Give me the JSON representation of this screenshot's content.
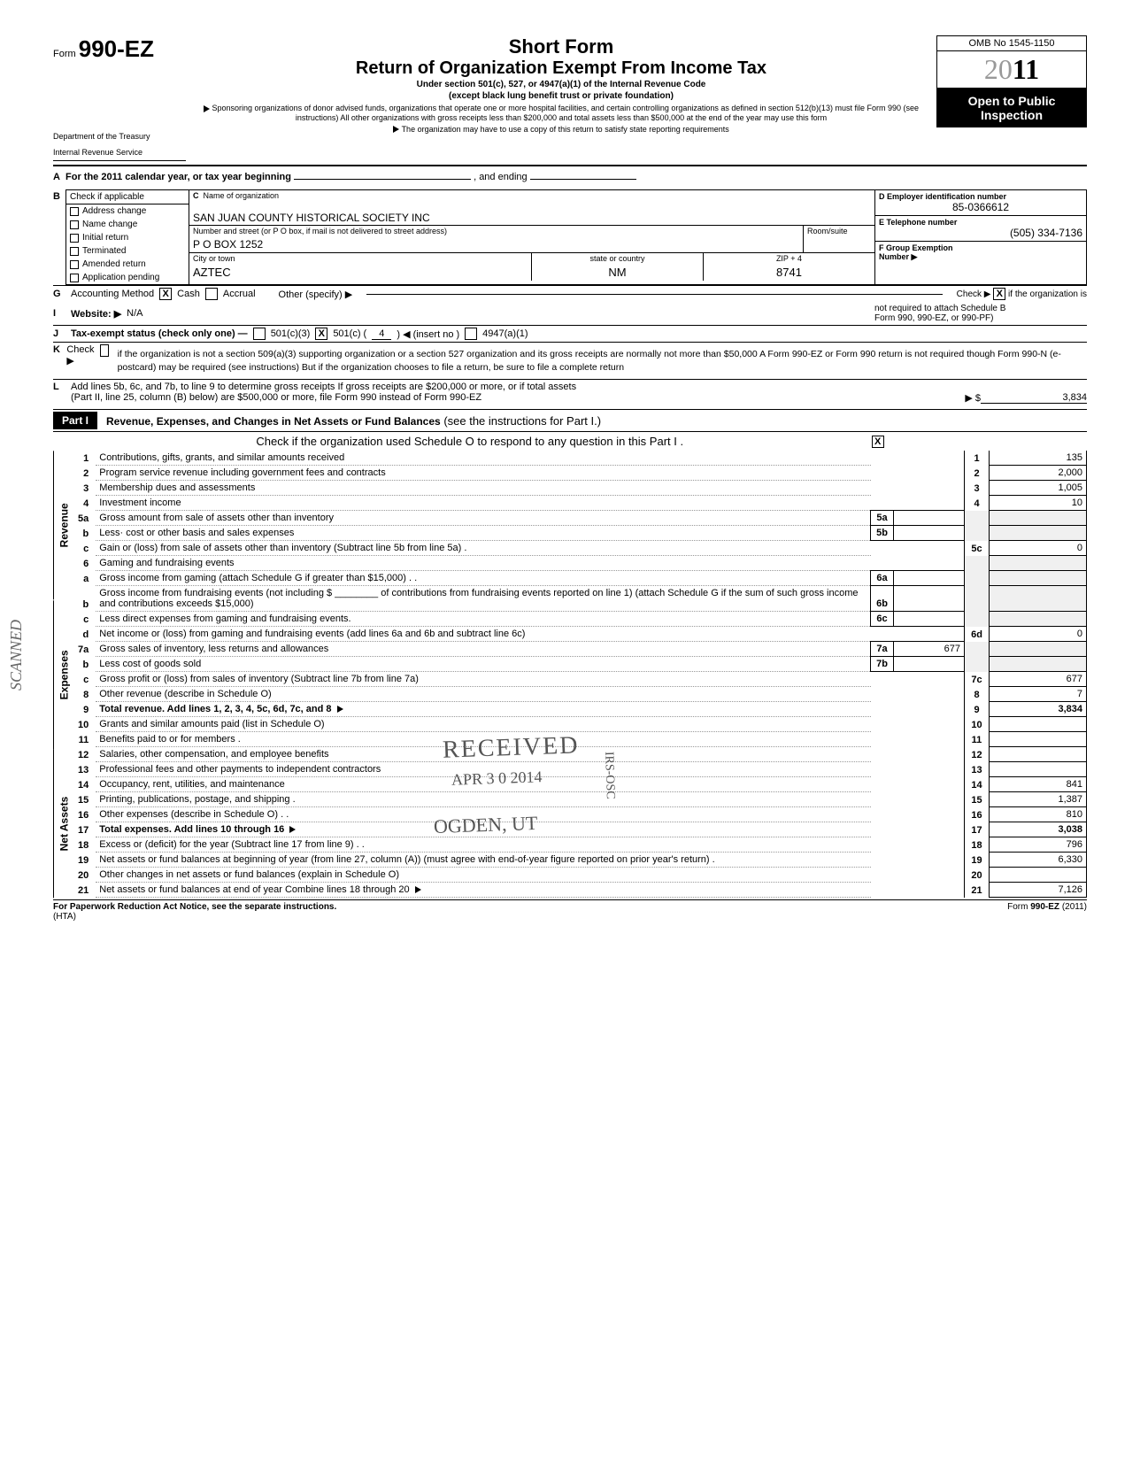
{
  "form": {
    "prefix": "Form",
    "number": "990-EZ",
    "dept1": "Department of the Treasury",
    "dept2": "Internal Revenue Service"
  },
  "title": {
    "main": "Short Form",
    "sub": "Return of Organization Exempt From Income Tax",
    "line1": "Under section 501(c), 527, or 4947(a)(1) of the Internal Revenue Code",
    "line2": "(except black lung benefit trust or private foundation)",
    "sponsor": "Sponsoring organizations of donor advised funds, organizations that operate one or more hospital facilities, and certain controlling organizations as defined in section 512(b)(13) must file Form 990 (see instructions) All other organizations with gross receipts less than $200,000 and total assets less than $500,000 at the end of the year may use this form",
    "copy": "The organization may have to use a copy of this return to satisfy state reporting requirements"
  },
  "rightcol": {
    "omb": "OMB No 1545-1150",
    "year_light": "20",
    "year_bold": "11",
    "open1": "Open to Public",
    "open2": "Inspection"
  },
  "lineA": {
    "text": "For the 2011 calendar year, or tax year beginning",
    "ending": ", and ending"
  },
  "sectionB": {
    "header": "Check if applicable",
    "items": [
      "Address change",
      "Name change",
      "Initial return",
      "Terminated",
      "Amended return",
      "Application pending"
    ]
  },
  "sectionC": {
    "header": "Name of organization",
    "org_name": "SAN JUAN COUNTY HISTORICAL SOCIETY INC",
    "addr_label": "Number and street (or P O box, if mail is not delivered to street address)",
    "room_label": "Room/suite",
    "addr": "P O BOX 1252",
    "city_label": "City or town",
    "state_label": "state or country",
    "zip_label": "ZIP + 4",
    "city": "AZTEC",
    "state": "NM",
    "zip": "8741"
  },
  "sectionD": {
    "d_label": "D  Employer identification number",
    "ein": "85-0366612",
    "e_label": "E  Telephone number",
    "phone": "(505) 334-7136",
    "f_label": "F  Group Exemption",
    "f_label2": "Number ▶"
  },
  "lineG": {
    "label": "Accounting Method",
    "cash": "Cash",
    "accrual": "Accrual",
    "other": "Other (specify) ▶"
  },
  "lineH": {
    "text1": "Check ▶",
    "text2": "if the organization is",
    "text3": "not required to attach Schedule B",
    "text4": "Form 990, 990-EZ, or 990-PF)"
  },
  "lineI": {
    "label": "Website: ▶",
    "value": "N/A"
  },
  "lineJ": {
    "label": "Tax-exempt status (check only one) —",
    "opt1": "501(c)(3)",
    "opt2": "501(c) (",
    "opt2_val": "4",
    "opt2_suffix": ") ◀ (insert no )",
    "opt3": "4947(a)(1)"
  },
  "lineK": {
    "label": "Check ▶",
    "text": "if the organization is not a section 509(a)(3) supporting organization or a section 527 organization and its gross receipts are normally not more than $50,000  A Form 990-EZ or Form 990 return is not required though Form 990-N (e-postcard) may be required (see instructions)  But if the organization chooses to file a return, be sure to file a complete return"
  },
  "lineL": {
    "text1": "Add lines 5b, 6c, and 7b, to line 9 to determine gross receipts  If gross receipts are $200,000 or more, or if total assets",
    "text2": "(Part II, line 25, column (B) below) are $500,000 or more, file Form 990 instead of Form 990-EZ",
    "arrow_label": "▶ $",
    "value": "3,834"
  },
  "part1": {
    "label": "Part I",
    "title": "Revenue, Expenses, and Changes in Net Assets or Fund Balances",
    "title_suffix": "(see the instructions for Part I.)",
    "schedule_o": "Check if the organization used Schedule O to respond to any question in this Part I .",
    "schedule_o_checked": "X"
  },
  "sides": {
    "revenue": "Revenue",
    "expenses": "Expenses",
    "netassets": "Net Assets"
  },
  "rows": [
    {
      "n": "1",
      "desc": "Contributions, gifts, grants, and similar amounts received",
      "box": "1",
      "amt": "135"
    },
    {
      "n": "2",
      "desc": "Program service revenue including government fees and contracts",
      "box": "2",
      "amt": "2,000"
    },
    {
      "n": "3",
      "desc": "Membership dues and assessments",
      "box": "3",
      "amt": "1,005"
    },
    {
      "n": "4",
      "desc": "Investment income",
      "box": "4",
      "amt": "10"
    },
    {
      "n": "5a",
      "desc": "Gross amount from sale of assets other than inventory",
      "sub": "5a",
      "subamt": ""
    },
    {
      "n": "b",
      "desc": "Less· cost or other basis and sales expenses",
      "sub": "5b",
      "subamt": ""
    },
    {
      "n": "c",
      "desc": "Gain or (loss) from sale of assets other than inventory (Subtract line 5b from line 5a) .",
      "box": "5c",
      "amt": "0"
    },
    {
      "n": "6",
      "desc": "Gaming and fundraising events"
    },
    {
      "n": "a",
      "desc": "Gross income from gaming (attach Schedule G if greater than $15,000) . .",
      "sub": "6a",
      "subamt": ""
    },
    {
      "n": "b",
      "desc": "Gross income from fundraising events (not including $ ________ of contributions from fundraising events reported on line 1) (attach Schedule G if the sum of such gross income and contributions exceeds $15,000)",
      "sub": "6b",
      "subamt": ""
    },
    {
      "n": "c",
      "desc": "Less direct expenses from gaming and fundraising events.",
      "sub": "6c",
      "subamt": ""
    },
    {
      "n": "d",
      "desc": "Net income or (loss) from gaming and fundraising events (add lines 6a and 6b and subtract line 6c)",
      "box": "6d",
      "amt": "0"
    },
    {
      "n": "7a",
      "desc": "Gross sales of inventory, less returns and allowances",
      "sub": "7a",
      "subamt": "677"
    },
    {
      "n": "b",
      "desc": "Less cost of goods sold",
      "sub": "7b",
      "subamt": ""
    },
    {
      "n": "c",
      "desc": "Gross profit or (loss) from sales of inventory (Subtract line 7b from line 7a)",
      "box": "7c",
      "amt": "677"
    },
    {
      "n": "8",
      "desc": "Other revenue (describe in Schedule O)",
      "box": "8",
      "amt": "7"
    },
    {
      "n": "9",
      "desc": "Total revenue. Add lines 1, 2, 3, 4, 5c, 6d, 7c, and 8",
      "box": "9",
      "amt": "3,834",
      "bold": true,
      "arrow": true
    },
    {
      "n": "10",
      "desc": "Grants and similar amounts paid (list in Schedule O)",
      "box": "10",
      "amt": ""
    },
    {
      "n": "11",
      "desc": "Benefits paid to or for members .",
      "box": "11",
      "amt": ""
    },
    {
      "n": "12",
      "desc": "Salaries, other compensation, and employee benefits",
      "box": "12",
      "amt": ""
    },
    {
      "n": "13",
      "desc": "Professional fees and other payments to independent contractors",
      "box": "13",
      "amt": ""
    },
    {
      "n": "14",
      "desc": "Occupancy, rent, utilities, and maintenance",
      "box": "14",
      "amt": "841"
    },
    {
      "n": "15",
      "desc": "Printing, publications, postage, and shipping .",
      "box": "15",
      "amt": "1,387"
    },
    {
      "n": "16",
      "desc": "Other expenses (describe in Schedule O) . .",
      "box": "16",
      "amt": "810"
    },
    {
      "n": "17",
      "desc": "Total expenses. Add lines 10 through 16",
      "box": "17",
      "amt": "3,038",
      "bold": true,
      "arrow": true
    },
    {
      "n": "18",
      "desc": "Excess or (deficit) for the year (Subtract line 17 from line 9) . .",
      "box": "18",
      "amt": "796"
    },
    {
      "n": "19",
      "desc": "Net assets or fund balances at beginning of year (from line 27, column (A)) (must agree with end-of-year figure reported on prior year's return) .",
      "box": "19",
      "amt": "6,330"
    },
    {
      "n": "20",
      "desc": "Other changes in net assets or fund balances (explain in Schedule O)",
      "box": "20",
      "amt": ""
    },
    {
      "n": "21",
      "desc": "Net assets or fund balances at end of year  Combine lines 18 through 20",
      "box": "21",
      "amt": "7,126",
      "arrow": true
    }
  ],
  "stamps": {
    "received": "RECEIVED",
    "date": "APR 3 0 2014",
    "ogden": "OGDEN, UT",
    "irs": "IRS-OSC",
    "scanned": "SCANNED"
  },
  "footer": {
    "left": "For Paperwork Reduction Act Notice, see the separate instructions.",
    "hta": "(HTA)",
    "right": "Form 990-EZ (2011)"
  }
}
